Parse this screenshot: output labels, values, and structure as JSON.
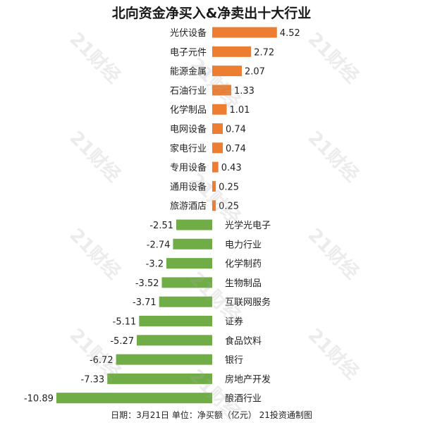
{
  "chart_data": {
    "type": "bar",
    "orientation": "horizontal",
    "title": "北向资金净买入&净卖出十大行业",
    "categories": [
      "光伏设备",
      "电子元件",
      "能源金属",
      "石油行业",
      "化学制品",
      "电网设备",
      "家电行业",
      "专用设备",
      "通用设备",
      "旅游酒店",
      "光学光电子",
      "电力行业",
      "化学制药",
      "生物制品",
      "互联网服务",
      "证券",
      "食品饮料",
      "银行",
      "房地产开发",
      "酿酒行业"
    ],
    "values": [
      4.52,
      2.72,
      2.07,
      1.33,
      1.01,
      0.74,
      0.74,
      0.43,
      0.25,
      0.25,
      -2.51,
      -2.74,
      -3.2,
      -3.52,
      -3.71,
      -5.11,
      -5.27,
      -6.72,
      -7.33,
      -10.89
    ],
    "value_labels": [
      "4.52",
      "2.72",
      "2.07",
      "1.33",
      "1.01",
      "0.74",
      "0.74",
      "0.43",
      "0.25",
      "0.25",
      "-2.51",
      "-2.74",
      "-3.2",
      "-3.52",
      "-3.71",
      "-5.11",
      "-5.27",
      "-6.72",
      "-7.33",
      "-10.89"
    ],
    "xlabel": "",
    "ylabel": "",
    "xlim": [
      -10.89,
      4.52
    ],
    "grid": false,
    "legend": "none",
    "colors": {
      "positive": "#ED7D31",
      "negative": "#70AD47"
    }
  },
  "footer": "日期：3月21日 单位：净买额（亿元） 21投资通制图",
  "watermark": "21财经"
}
